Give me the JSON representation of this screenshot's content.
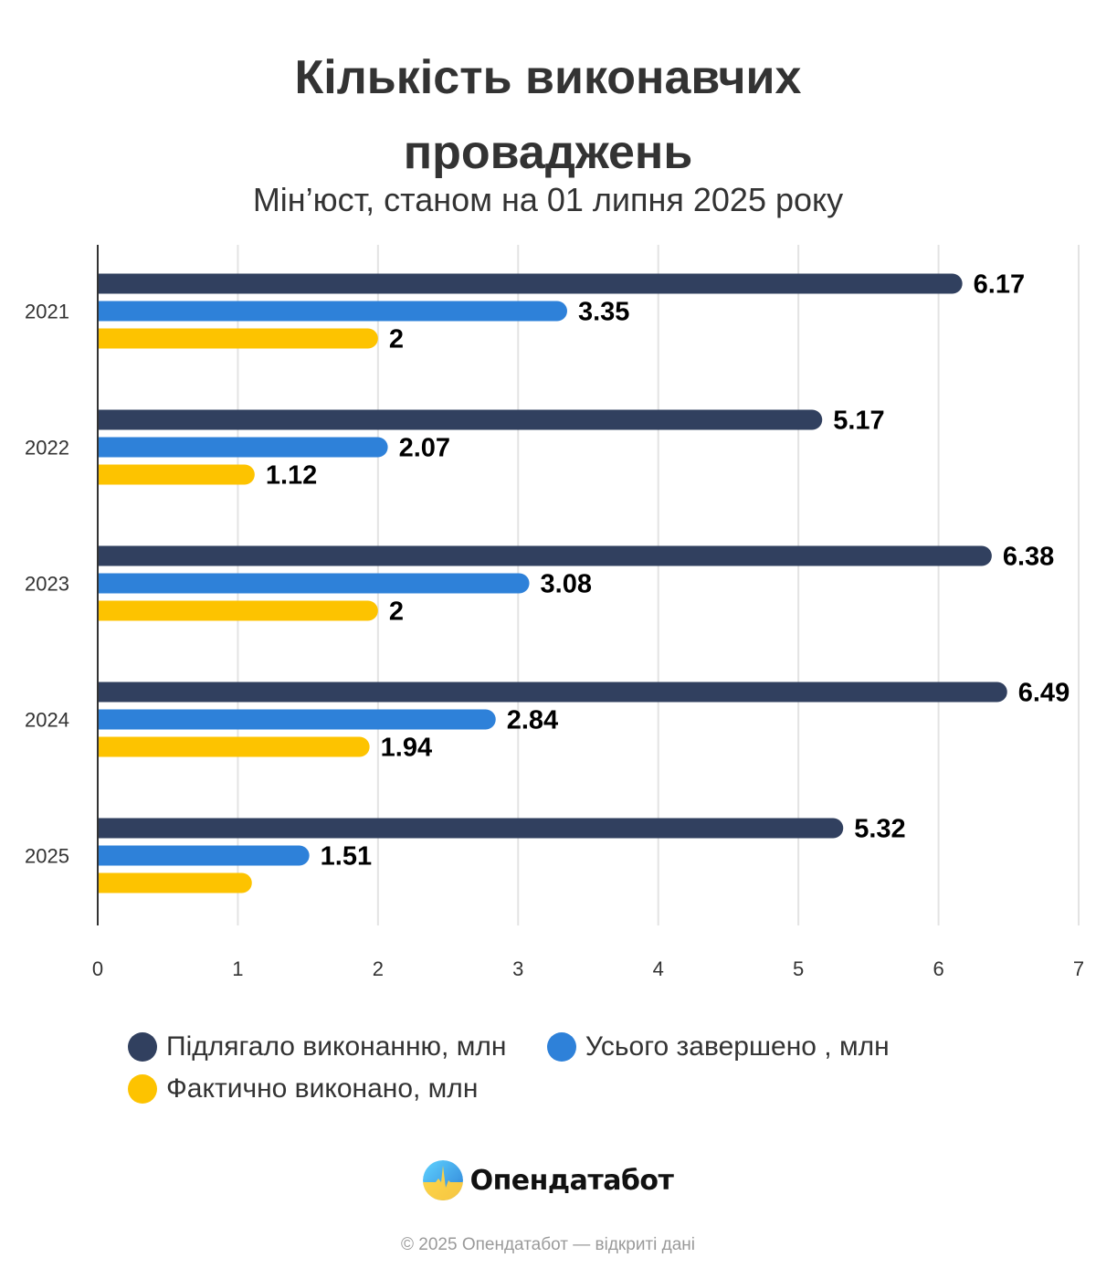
{
  "header": {
    "title_line1": "Кількість виконавчих",
    "title_line2": "проваджень",
    "subtitle": "Мін’юст, станом на 01 липня 2025 року"
  },
  "chart_data": {
    "type": "bar",
    "orientation": "horizontal",
    "title": "Кількість виконавчих проваджень",
    "subtitle": "Мін’юст, станом на 01 липня 2025 року",
    "xlabel": "",
    "ylabel": "",
    "categories": [
      "2021",
      "2022",
      "2023",
      "2024",
      "2025"
    ],
    "series": [
      {
        "name": "Підлягало виконанню, млн",
        "color": "#31405f",
        "values": [
          6.17,
          5.17,
          6.38,
          6.49,
          5.32
        ],
        "labels": [
          "6.17",
          "5.17",
          "6.38",
          "6.49",
          "5.32"
        ]
      },
      {
        "name": "Усього завершено , млн",
        "color": "#2e81d9",
        "values": [
          3.35,
          2.07,
          3.08,
          2.84,
          1.51
        ],
        "labels": [
          "3.35",
          "2.07",
          "3.08",
          "2.84",
          "1.51"
        ]
      },
      {
        "name": "Фактично виконано, млн",
        "color": "#fdc300",
        "values": [
          2,
          1.12,
          2,
          1.94,
          1.1
        ],
        "labels": [
          "2",
          "1.12",
          "2",
          "1.94",
          ""
        ]
      }
    ],
    "xlim": [
      0,
      7
    ],
    "xticks": [
      "0",
      "1",
      "2",
      "3",
      "4",
      "5",
      "6",
      "7"
    ],
    "grid": true,
    "legend_position": "bottom"
  },
  "legend": {
    "items": [
      {
        "label": "Підлягало виконанню, млн",
        "color": "#31405f"
      },
      {
        "label": "Усього завершено , млн",
        "color": "#2e81d9"
      },
      {
        "label": "Фактично виконано, млн",
        "color": "#fdc300"
      }
    ]
  },
  "branding": {
    "name": "Опендатабот",
    "logo_icon": "opendatabot-logo-icon"
  },
  "footer": {
    "copyright": "© 2025 Опендатабот — відкриті дані"
  }
}
